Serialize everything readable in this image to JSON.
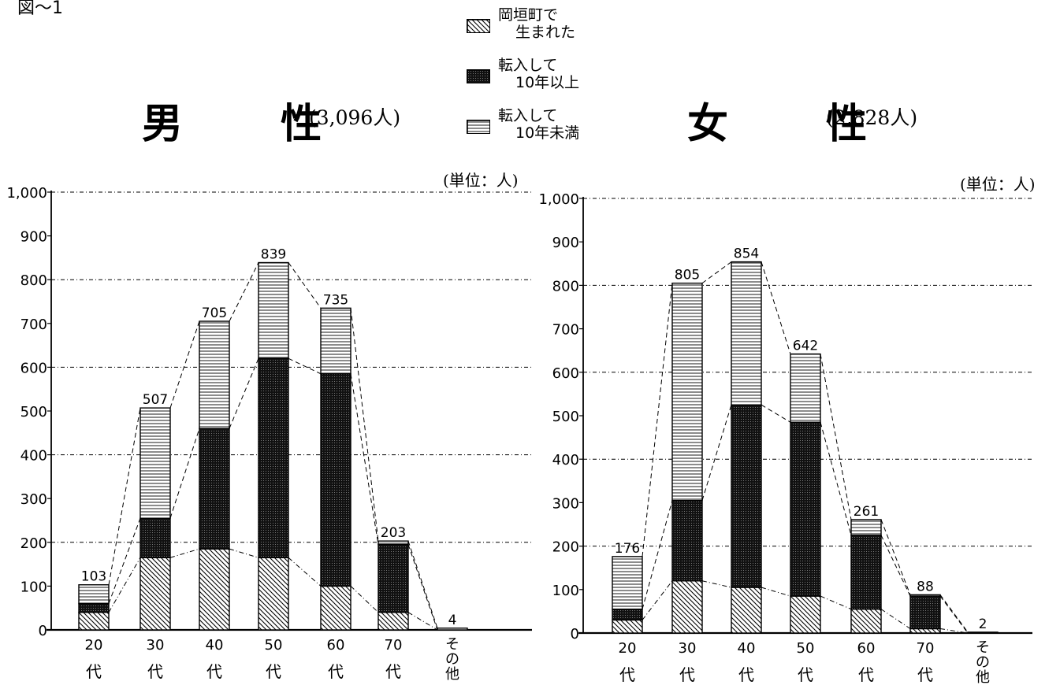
{
  "figure_label": "図〜1",
  "legend": {
    "items": [
      {
        "key": "born",
        "lines": [
          "岡垣町で",
          "生まれた"
        ],
        "pattern": "diagonal"
      },
      {
        "key": "over10",
        "lines": [
          "転入して",
          "10年以上"
        ],
        "pattern": "grid"
      },
      {
        "key": "under10",
        "lines": [
          "転入して",
          "10年未満"
        ],
        "pattern": "horizontal"
      }
    ]
  },
  "chart_data": [
    {
      "type": "bar",
      "stacked": true,
      "title": "男　性",
      "subtitle": "(3,096人)",
      "unit": "(単位：人)",
      "categories": [
        "20",
        "30",
        "40",
        "50",
        "60",
        "70",
        "その他"
      ],
      "category_suffix": "代",
      "ylim": [
        0,
        1000
      ],
      "yticks": [
        "0",
        "100",
        "200",
        "300",
        "400",
        "500",
        "600",
        "700",
        "800",
        "900",
        "1,000"
      ],
      "grid": true,
      "totals": [
        103,
        507,
        705,
        839,
        735,
        203,
        4
      ],
      "series": [
        {
          "name": "岡垣町で生まれた",
          "values": [
            40,
            165,
            185,
            165,
            100,
            40,
            0
          ]
        },
        {
          "name": "転入して10年以上",
          "values": [
            20,
            90,
            275,
            455,
            485,
            155,
            0
          ]
        },
        {
          "name": "転入して10年未満",
          "values": [
            43,
            252,
            245,
            219,
            150,
            8,
            4
          ]
        }
      ]
    },
    {
      "type": "bar",
      "stacked": true,
      "title": "女　性",
      "subtitle": "(2,828人)",
      "unit": "(単位：人)",
      "categories": [
        "20",
        "30",
        "40",
        "50",
        "60",
        "70",
        "その他"
      ],
      "category_suffix": "代",
      "ylim": [
        0,
        1000
      ],
      "yticks": [
        "0",
        "100",
        "200",
        "300",
        "400",
        "500",
        "600",
        "700",
        "800",
        "900",
        "1,000"
      ],
      "grid": true,
      "totals": [
        176,
        805,
        854,
        642,
        261,
        88,
        2
      ],
      "series": [
        {
          "name": "岡垣町で生まれた",
          "values": [
            30,
            120,
            105,
            85,
            55,
            10,
            0
          ]
        },
        {
          "name": "転入して10年以上",
          "values": [
            25,
            185,
            420,
            400,
            170,
            75,
            0
          ]
        },
        {
          "name": "転入して10年未満",
          "values": [
            121,
            500,
            329,
            157,
            36,
            3,
            2
          ]
        }
      ]
    }
  ]
}
